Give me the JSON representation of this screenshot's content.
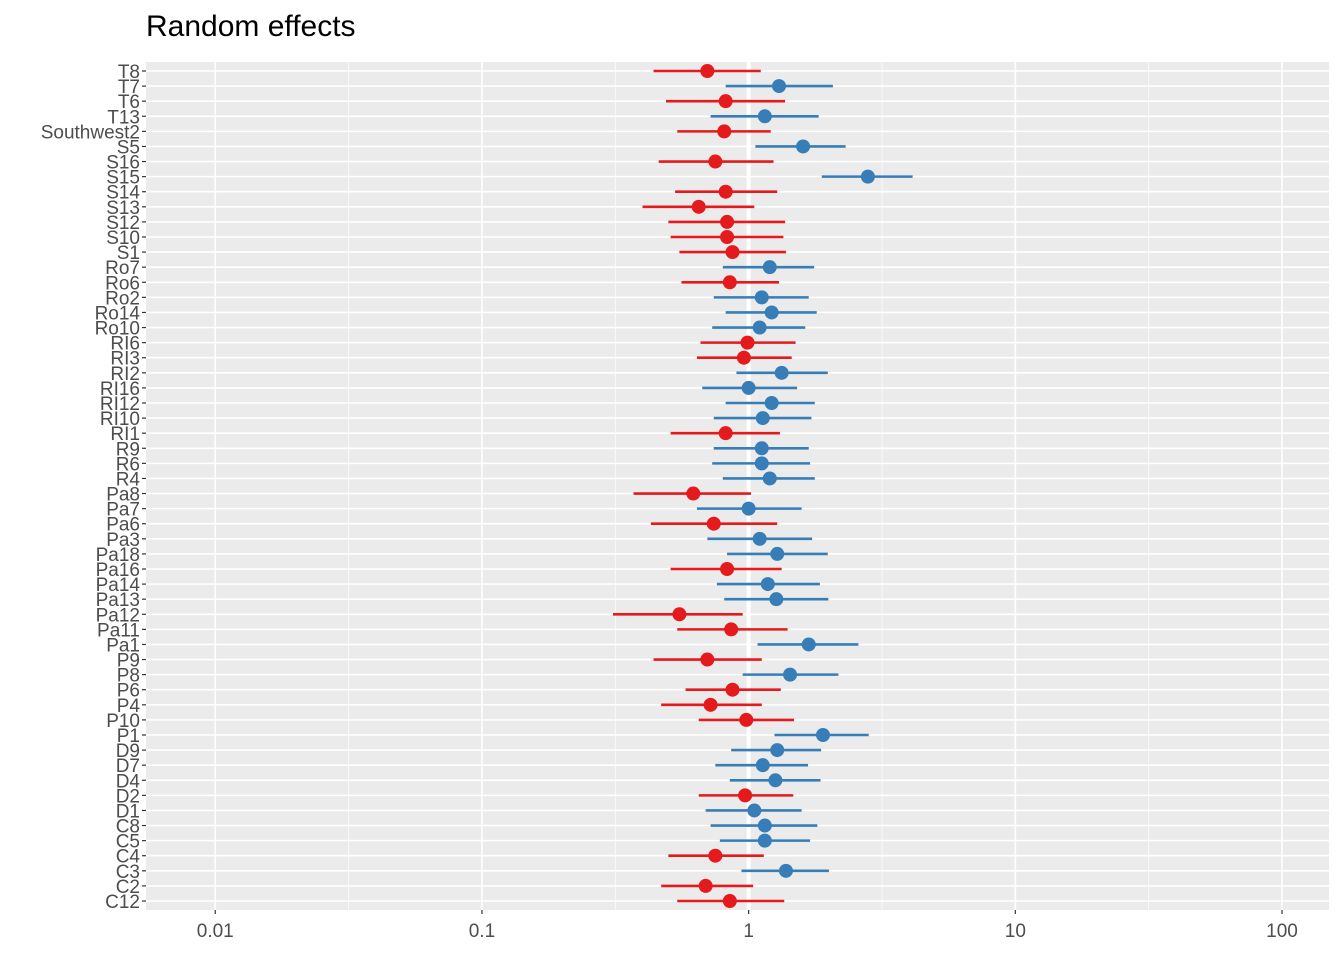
{
  "chart_data": {
    "type": "scatter",
    "title": "Random effects",
    "xlabel": "",
    "ylabel": "",
    "x_scale": "log10",
    "xlim": [
      0.0055,
      150
    ],
    "x_ticks": [
      {
        "value": 0.01,
        "label": "0.01"
      },
      {
        "value": 0.1,
        "label": "0.1"
      },
      {
        "value": 1,
        "label": "1"
      },
      {
        "value": 10,
        "label": "10"
      },
      {
        "value": 100,
        "label": "100"
      }
    ],
    "reference_line": 1,
    "grid": true,
    "legend": "none",
    "colors": {
      "below_one": "#e41a1c",
      "above_one": "#377eb8",
      "panel": "#ebebeb",
      "grid": "#ffffff"
    },
    "points": [
      {
        "label": "T8",
        "estimate": 0.7,
        "lower": 0.44,
        "upper": 1.11
      },
      {
        "label": "T7",
        "estimate": 1.3,
        "lower": 0.82,
        "upper": 2.07
      },
      {
        "label": "T6",
        "estimate": 0.82,
        "lower": 0.49,
        "upper": 1.37
      },
      {
        "label": "T13",
        "estimate": 1.15,
        "lower": 0.72,
        "upper": 1.83
      },
      {
        "label": "Southwest2",
        "estimate": 0.81,
        "lower": 0.54,
        "upper": 1.21
      },
      {
        "label": "S5",
        "estimate": 1.6,
        "lower": 1.06,
        "upper": 2.31
      },
      {
        "label": "S16",
        "estimate": 0.75,
        "lower": 0.46,
        "upper": 1.24
      },
      {
        "label": "S15",
        "estimate": 2.8,
        "lower": 1.88,
        "upper": 4.12
      },
      {
        "label": "S14",
        "estimate": 0.82,
        "lower": 0.53,
        "upper": 1.28
      },
      {
        "label": "S13",
        "estimate": 0.65,
        "lower": 0.4,
        "upper": 1.05
      },
      {
        "label": "S12",
        "estimate": 0.83,
        "lower": 0.5,
        "upper": 1.37
      },
      {
        "label": "S10",
        "estimate": 0.83,
        "lower": 0.51,
        "upper": 1.35
      },
      {
        "label": "S1",
        "estimate": 0.87,
        "lower": 0.55,
        "upper": 1.38
      },
      {
        "label": "Ro7",
        "estimate": 1.2,
        "lower": 0.8,
        "upper": 1.76
      },
      {
        "label": "Ro6",
        "estimate": 0.85,
        "lower": 0.56,
        "upper": 1.3
      },
      {
        "label": "Ro2",
        "estimate": 1.12,
        "lower": 0.74,
        "upper": 1.68
      },
      {
        "label": "Ro14",
        "estimate": 1.22,
        "lower": 0.82,
        "upper": 1.8
      },
      {
        "label": "Ro10",
        "estimate": 1.1,
        "lower": 0.73,
        "upper": 1.63
      },
      {
        "label": "RI6",
        "estimate": 0.99,
        "lower": 0.66,
        "upper": 1.5
      },
      {
        "label": "RI3",
        "estimate": 0.96,
        "lower": 0.64,
        "upper": 1.45
      },
      {
        "label": "RI2",
        "estimate": 1.33,
        "lower": 0.9,
        "upper": 1.98
      },
      {
        "label": "RI16",
        "estimate": 1.0,
        "lower": 0.67,
        "upper": 1.52
      },
      {
        "label": "RI12",
        "estimate": 1.22,
        "lower": 0.82,
        "upper": 1.77
      },
      {
        "label": "RI10",
        "estimate": 1.13,
        "lower": 0.74,
        "upper": 1.72
      },
      {
        "label": "RI1",
        "estimate": 0.82,
        "lower": 0.51,
        "upper": 1.31
      },
      {
        "label": "R9",
        "estimate": 1.12,
        "lower": 0.74,
        "upper": 1.68
      },
      {
        "label": "R6",
        "estimate": 1.12,
        "lower": 0.73,
        "upper": 1.7
      },
      {
        "label": "R4",
        "estimate": 1.2,
        "lower": 0.8,
        "upper": 1.77
      },
      {
        "label": "Pa8",
        "estimate": 0.62,
        "lower": 0.37,
        "upper": 1.02
      },
      {
        "label": "Pa7",
        "estimate": 1.0,
        "lower": 0.64,
        "upper": 1.58
      },
      {
        "label": "Pa6",
        "estimate": 0.74,
        "lower": 0.43,
        "upper": 1.28
      },
      {
        "label": "Pa3",
        "estimate": 1.1,
        "lower": 0.7,
        "upper": 1.73
      },
      {
        "label": "Pa18",
        "estimate": 1.28,
        "lower": 0.83,
        "upper": 1.98
      },
      {
        "label": "Pa16",
        "estimate": 0.83,
        "lower": 0.51,
        "upper": 1.33
      },
      {
        "label": "Pa14",
        "estimate": 1.18,
        "lower": 0.76,
        "upper": 1.85
      },
      {
        "label": "Pa13",
        "estimate": 1.27,
        "lower": 0.81,
        "upper": 1.99
      },
      {
        "label": "Pa12",
        "estimate": 0.55,
        "lower": 0.31,
        "upper": 0.95
      },
      {
        "label": "Pa11",
        "estimate": 0.86,
        "lower": 0.54,
        "upper": 1.4
      },
      {
        "label": "Pa1",
        "estimate": 1.68,
        "lower": 1.08,
        "upper": 2.58
      },
      {
        "label": "P9",
        "estimate": 0.7,
        "lower": 0.44,
        "upper": 1.12
      },
      {
        "label": "P8",
        "estimate": 1.43,
        "lower": 0.95,
        "upper": 2.17
      },
      {
        "label": "P6",
        "estimate": 0.87,
        "lower": 0.58,
        "upper": 1.32
      },
      {
        "label": "P4",
        "estimate": 0.72,
        "lower": 0.47,
        "upper": 1.12
      },
      {
        "label": "P10",
        "estimate": 0.98,
        "lower": 0.65,
        "upper": 1.48
      },
      {
        "label": "P1",
        "estimate": 1.9,
        "lower": 1.25,
        "upper": 2.82
      },
      {
        "label": "D9",
        "estimate": 1.28,
        "lower": 0.86,
        "upper": 1.87
      },
      {
        "label": "D7",
        "estimate": 1.13,
        "lower": 0.75,
        "upper": 1.67
      },
      {
        "label": "D4",
        "estimate": 1.26,
        "lower": 0.85,
        "upper": 1.86
      },
      {
        "label": "D2",
        "estimate": 0.97,
        "lower": 0.65,
        "upper": 1.47
      },
      {
        "label": "D1",
        "estimate": 1.05,
        "lower": 0.69,
        "upper": 1.58
      },
      {
        "label": "C8",
        "estimate": 1.15,
        "lower": 0.72,
        "upper": 1.81
      },
      {
        "label": "C5",
        "estimate": 1.15,
        "lower": 0.78,
        "upper": 1.7
      },
      {
        "label": "C4",
        "estimate": 0.75,
        "lower": 0.5,
        "upper": 1.14
      },
      {
        "label": "C3",
        "estimate": 1.38,
        "lower": 0.94,
        "upper": 2.0
      },
      {
        "label": "C2",
        "estimate": 0.69,
        "lower": 0.47,
        "upper": 1.04
      },
      {
        "label": "C12",
        "estimate": 0.85,
        "lower": 0.54,
        "upper": 1.36
      }
    ]
  }
}
